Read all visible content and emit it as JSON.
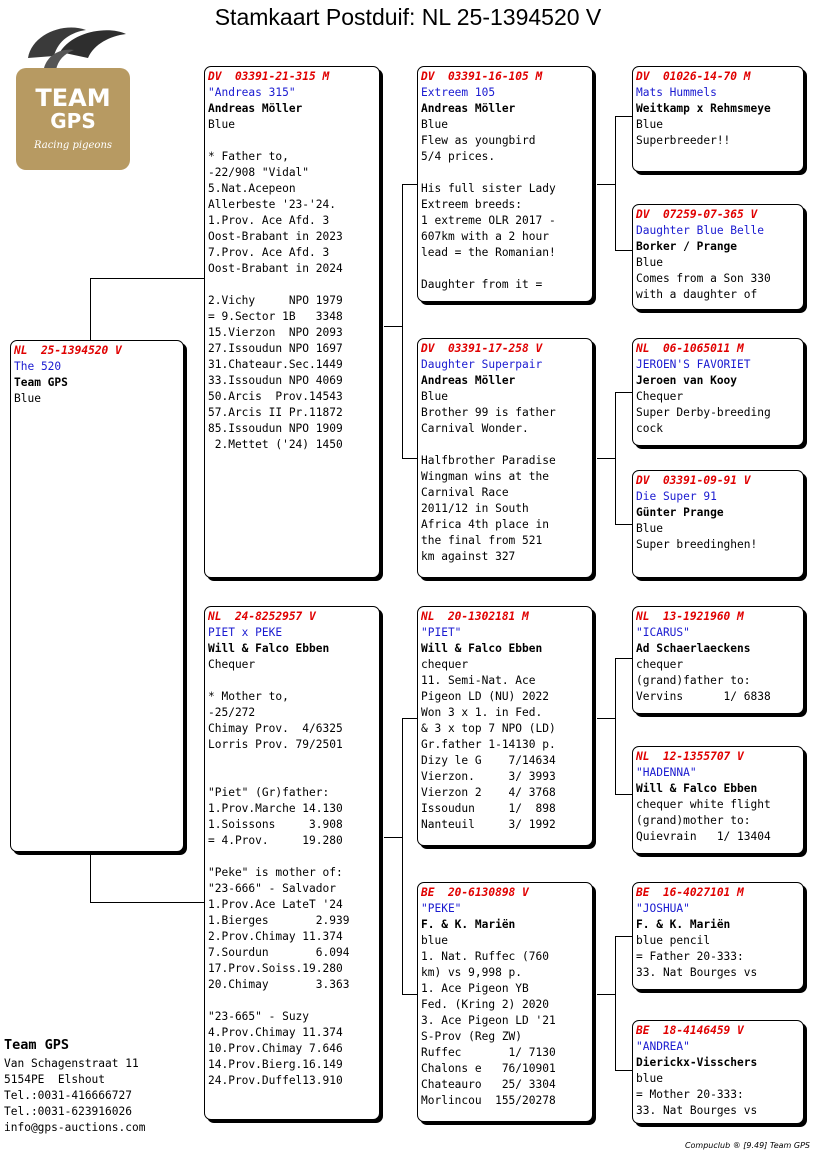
{
  "title": "Stamkaart Postduif: NL  25-1394520 V",
  "logo": {
    "line1": "TEAM",
    "line2": "GPS",
    "tagline": "Racing pigeons"
  },
  "colors": {
    "ring": "#e00000",
    "name": "#1a1ad0",
    "logo_bg": "#b79a62"
  },
  "cards": [
    {
      "id": "subject",
      "ring": "NL  25-1394520 V",
      "name": "The 520",
      "owner": "Team GPS",
      "lines": [
        "Blue"
      ]
    },
    {
      "id": "father",
      "ring": "DV  03391-21-315 M",
      "name": "\"Andreas 315\"",
      "owner": "Andreas Möller",
      "lines": [
        "Blue",
        "",
        "* Father to,",
        "-22/908 \"Vidal\"",
        "5.Nat.Acepeon",
        "Allerbeste '23-'24.",
        "1.Prov. Ace Afd. 3",
        "Oost-Brabant in 2023",
        "7.Prov. Ace Afd. 3",
        "Oost-Brabant in 2024",
        "",
        "2.Vichy     NPO 1979",
        "= 9.Sector 1B   3348",
        "15.Vierzon  NPO 2093",
        "27.Issoudun NPO 1697",
        "31.Chateaur.Sec.1449",
        "33.Issoudun NPO 4069",
        "50.Arcis  Prov.14543",
        "57.Arcis II Pr.11872",
        "85.Issoudun NPO 1909",
        " 2.Mettet ('24) 1450"
      ]
    },
    {
      "id": "mother",
      "ring": "NL  24-8252957 V",
      "name": "PIET x PEKE",
      "owner": "Will & Falco Ebben",
      "lines": [
        "Chequer",
        "",
        "* Mother to,",
        "-25/272",
        "Chimay Prov.  4/6325",
        "Lorris Prov. 79/2501",
        "",
        "",
        "\"Piet\" (Gr)father:",
        "1.Prov.Marche 14.130",
        "1.Soissons     3.908",
        "= 4.Prov.     19.280",
        "",
        "\"Peke\" is mother of:",
        "\"23-666\" - Salvador",
        "1.Prov.Ace LateT '24",
        "1.Bierges       2.939",
        "2.Prov.Chimay 11.374",
        "7.Sourdun       6.094",
        "17.Prov.Soiss.19.280",
        "20.Chimay       3.363",
        "",
        "\"23-665\" - Suzy",
        "4.Prov.Chimay 11.374",
        "10.Prov.Chimay 7.646",
        "14.Prov.Bierg.16.149",
        "24.Prov.Duffel13.910"
      ]
    },
    {
      "id": "ff",
      "ring": "DV  03391-16-105 M",
      "name": "Extreem 105",
      "owner": "Andreas Möller",
      "lines": [
        "Blue",
        "Flew as youngbird",
        "5/4 prices.",
        "",
        "His full sister Lady",
        "Extreem breeds:",
        "1 extreme OLR 2017 -",
        "607km with a 2 hour",
        "lead = the Romanian!",
        "",
        "Daughter from it ="
      ]
    },
    {
      "id": "fm",
      "ring": "DV  03391-17-258 V",
      "name": "Daughter Superpair",
      "owner": "Andreas Möller",
      "lines": [
        "Blue",
        "Brother 99 is father",
        "Carnival Wonder.",
        "",
        "Halfbrother Paradise",
        "Wingman wins at the",
        "Carnival Race",
        "2011/12 in South",
        "Africa 4th place in",
        "the final from 521",
        "km against 327"
      ]
    },
    {
      "id": "mf",
      "ring": "NL  20-1302181 M",
      "name": "\"PIET\"",
      "owner": "Will & Falco Ebben",
      "lines": [
        "chequer",
        "11. Semi-Nat. Ace",
        "Pigeon LD (NU) 2022",
        "Won 3 x 1. in Fed.",
        "& 3 x top 7 NPO (LD)",
        "Gr.father 1-14130 p.",
        "Dizy le G    7/14634",
        "Vierzon.     3/ 3993",
        "Vierzon 2    4/ 3768",
        "Issoudun     1/  898",
        "Nanteuil     3/ 1992"
      ]
    },
    {
      "id": "mm",
      "ring": "BE  20-6130898 V",
      "name": "\"PEKE\"",
      "owner": "F. & K. Mariën",
      "lines": [
        "blue",
        "1. Nat. Ruffec (760",
        "km) vs 9,998 p.",
        "1. Ace Pigeon YB",
        "Fed. (Kring 2) 2020",
        "3. Ace Pigeon LD '21",
        "S-Prov (Reg ZW)",
        "Ruffec       1/ 7130",
        "Chalons e   76/10901",
        "Chateauro   25/ 3304",
        "Morlincou  155/20278"
      ]
    },
    {
      "id": "fff",
      "ring": "DV  01026-14-70 M",
      "name": "Mats Hummels",
      "owner": "Weitkamp x Rehmsmeye",
      "lines": [
        "Blue",
        "Superbreeder!!"
      ]
    },
    {
      "id": "ffm",
      "ring": "DV  07259-07-365 V",
      "name": "Daughter Blue Belle",
      "owner": "Borker / Prange",
      "lines": [
        "Blue",
        "Comes from a Son 330",
        "with a daughter of"
      ]
    },
    {
      "id": "fmf",
      "ring": "NL  06-1065011 M",
      "name": "JEROEN'S FAVORIET",
      "owner": "Jeroen van Kooy",
      "lines": [
        "Chequer",
        "Super Derby-breeding",
        "cock"
      ]
    },
    {
      "id": "fmm",
      "ring": "DV  03391-09-91 V",
      "name": "Die Super 91",
      "owner": "Günter Prange",
      "lines": [
        "Blue",
        "Super breedinghen!"
      ]
    },
    {
      "id": "mff",
      "ring": "NL  13-1921960 M",
      "name": "\"ICARUS\"",
      "owner": "Ad Schaerlaeckens",
      "lines": [
        "chequer",
        "(grand)father to:",
        "Vervins      1/ 6838"
      ]
    },
    {
      "id": "mfm",
      "ring": "NL  12-1355707 V",
      "name": "\"HADENNA\"",
      "owner": "Will & Falco Ebben",
      "lines": [
        "chequer white flight",
        "(grand)mother to:",
        "Quievrain   1/ 13404"
      ]
    },
    {
      "id": "mmf",
      "ring": "BE  16-4027101 M",
      "name": "\"JOSHUA\"",
      "owner": "F. & K. Mariën",
      "lines": [
        "blue pencil",
        "= Father 20-333:",
        "33. Nat Bourges vs"
      ]
    },
    {
      "id": "mmm",
      "ring": "BE  18-4146459 V",
      "name": "\"ANDREA\"",
      "owner": "Dierickx-Visschers",
      "lines": [
        "blue",
        "= Mother 20-333:",
        "33. Nat Bourges vs"
      ]
    }
  ],
  "team": {
    "name": "Team GPS",
    "lines": [
      "Van Schagenstraat 11",
      "5154PE  Elshout",
      "Tel.:0031-416666727",
      "Tel.:0031-623916026",
      "info@gps-auctions.com"
    ]
  },
  "footer": "Compuclub ® [9.49]  Team GPS"
}
